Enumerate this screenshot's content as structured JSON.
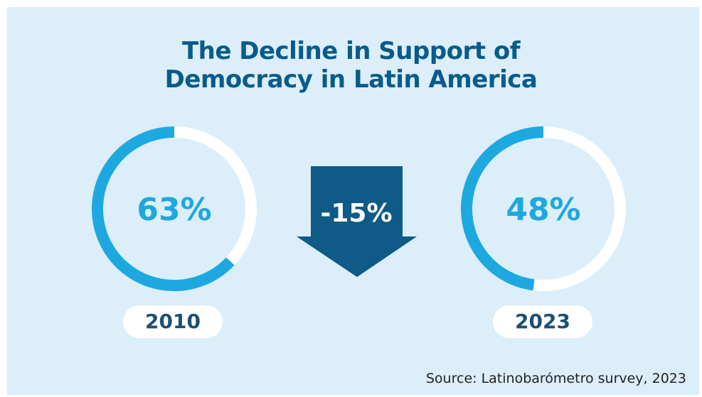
{
  "title": {
    "line1": "The Decline in Support of",
    "line2": "Democracy in Latin America"
  },
  "chart_data": {
    "type": "donut",
    "title": "The Decline in Support of Democracy in Latin America",
    "items": [
      {
        "year": "2010",
        "value": 63,
        "label": "63%"
      },
      {
        "year": "2023",
        "value": 48,
        "label": "48%"
      }
    ],
    "change": {
      "value": -15,
      "label": "-15%"
    },
    "source": "Source: Latinobarómetro survey, 2023"
  },
  "colors": {
    "arc_fill": "#1ea8e0",
    "arc_track": "#ffffff",
    "arrow": "#0d5b86",
    "title": "#0a5b8a",
    "background": "#dbeef9"
  }
}
